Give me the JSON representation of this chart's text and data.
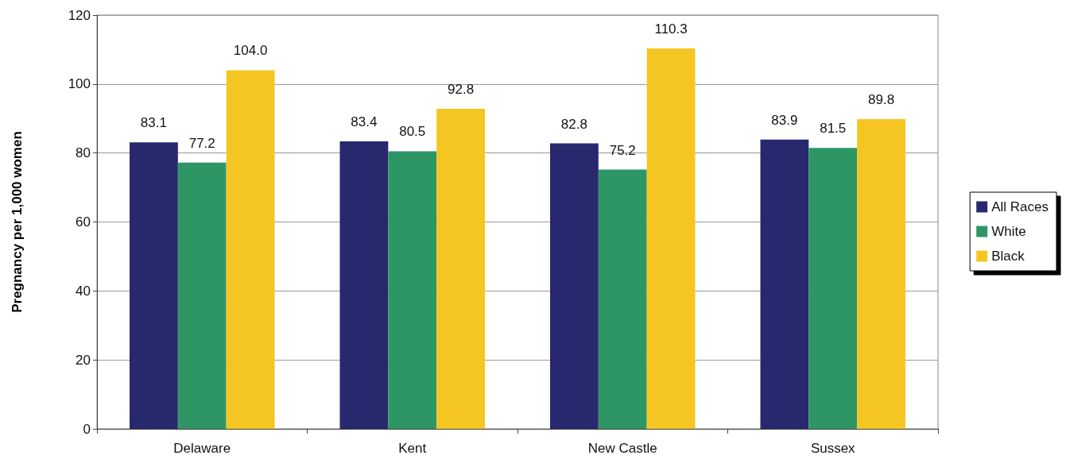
{
  "chart_data": {
    "type": "bar",
    "ylabel": "Pregnancy per 1,000 women",
    "categories": [
      "Delaware",
      "Kent",
      "New Castle",
      "Sussex"
    ],
    "series": [
      {
        "name": "All Races",
        "color": "#27286e",
        "values": [
          83.1,
          83.4,
          82.8,
          83.9
        ],
        "value_labels": [
          "83.1",
          "83.4",
          "82.8",
          "83.9"
        ]
      },
      {
        "name": "White",
        "color": "#2e9665",
        "values": [
          77.2,
          80.5,
          75.2,
          81.5
        ],
        "value_labels": [
          "77.2",
          "80.5",
          "75.2",
          "81.5"
        ]
      },
      {
        "name": "Black",
        "color": "#f5c622",
        "values": [
          104.0,
          92.8,
          110.3,
          89.8
        ],
        "value_labels": [
          "104.0",
          "92.8",
          "110.3",
          "89.8"
        ]
      }
    ],
    "ylim": [
      0,
      120
    ],
    "yticks": [
      0,
      20,
      40,
      60,
      80,
      100,
      120
    ],
    "grid": "y",
    "legend": "right"
  }
}
